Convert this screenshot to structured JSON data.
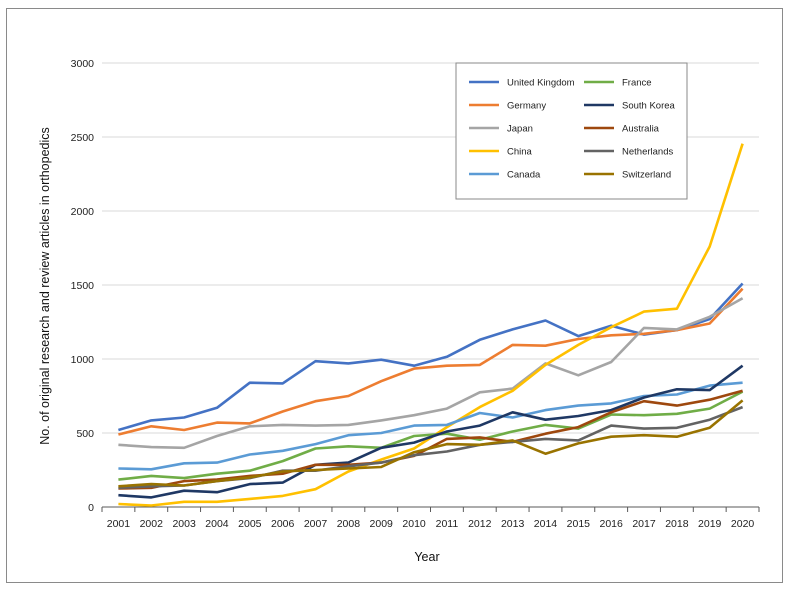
{
  "chart_data": {
    "type": "line",
    "title": "",
    "xlabel": "Year",
    "ylabel": "No. of original research and review articles in orthopedics",
    "ylim": [
      0,
      3000
    ],
    "yticks": [
      0,
      500,
      1000,
      1500,
      2000,
      2500,
      3000
    ],
    "grid": true,
    "legend_position": "top-right",
    "x": [
      "2001",
      "2002",
      "2003",
      "2004",
      "2005",
      "2006",
      "2007",
      "2008",
      "2009",
      "2010",
      "2011",
      "2012",
      "2013",
      "2014",
      "2015",
      "2016",
      "2017",
      "2018",
      "2019",
      "2020"
    ],
    "series": [
      {
        "name": "United Kingdom",
        "color": "#4472c4",
        "values": [
          520,
          585,
          605,
          670,
          840,
          835,
          985,
          970,
          995,
          955,
          1015,
          1130,
          1200,
          1260,
          1155,
          1225,
          1165,
          1195,
          1270,
          1510
        ]
      },
      {
        "name": "Germany",
        "color": "#ed7d31",
        "values": [
          490,
          545,
          520,
          570,
          565,
          645,
          715,
          750,
          850,
          935,
          955,
          960,
          1095,
          1090,
          1135,
          1160,
          1170,
          1195,
          1240,
          1475
        ]
      },
      {
        "name": "Japan",
        "color": "#a5a5a5",
        "values": [
          420,
          405,
          400,
          480,
          545,
          555,
          550,
          555,
          585,
          620,
          665,
          775,
          800,
          970,
          890,
          980,
          1210,
          1200,
          1285,
          1410
        ]
      },
      {
        "name": "China",
        "color": "#ffc000",
        "values": [
          20,
          10,
          35,
          35,
          55,
          75,
          120,
          240,
          320,
          395,
          540,
          675,
          785,
          960,
          1095,
          1215,
          1320,
          1340,
          1760,
          2455
        ]
      },
      {
        "name": "Canada",
        "color": "#5b9bd5",
        "values": [
          260,
          255,
          295,
          300,
          355,
          380,
          425,
          485,
          500,
          550,
          555,
          635,
          605,
          655,
          685,
          700,
          750,
          760,
          820,
          840
        ]
      },
      {
        "name": "France",
        "color": "#70ad47",
        "values": [
          185,
          210,
          195,
          225,
          245,
          310,
          395,
          410,
          400,
          480,
          495,
          455,
          510,
          555,
          530,
          625,
          620,
          630,
          665,
          780
        ]
      },
      {
        "name": "South Korea",
        "color": "#1f3864",
        "values": [
          80,
          65,
          110,
          100,
          155,
          165,
          285,
          300,
          400,
          435,
          510,
          550,
          640,
          590,
          615,
          655,
          740,
          795,
          790,
          955
        ]
      },
      {
        "name": "Australia",
        "color": "#9e480e",
        "values": [
          125,
          130,
          175,
          185,
          210,
          225,
          285,
          285,
          300,
          345,
          460,
          470,
          440,
          495,
          540,
          640,
          715,
          685,
          725,
          785
        ]
      },
      {
        "name": "Netherlands",
        "color": "#636363",
        "values": [
          130,
          140,
          145,
          175,
          195,
          245,
          245,
          275,
          300,
          350,
          375,
          420,
          440,
          460,
          450,
          550,
          530,
          535,
          590,
          675
        ]
      },
      {
        "name": "Switzerland",
        "color": "#997300",
        "values": [
          140,
          155,
          145,
          175,
          200,
          240,
          250,
          260,
          270,
          370,
          425,
          420,
          450,
          360,
          430,
          475,
          485,
          475,
          535,
          720
        ]
      }
    ]
  }
}
